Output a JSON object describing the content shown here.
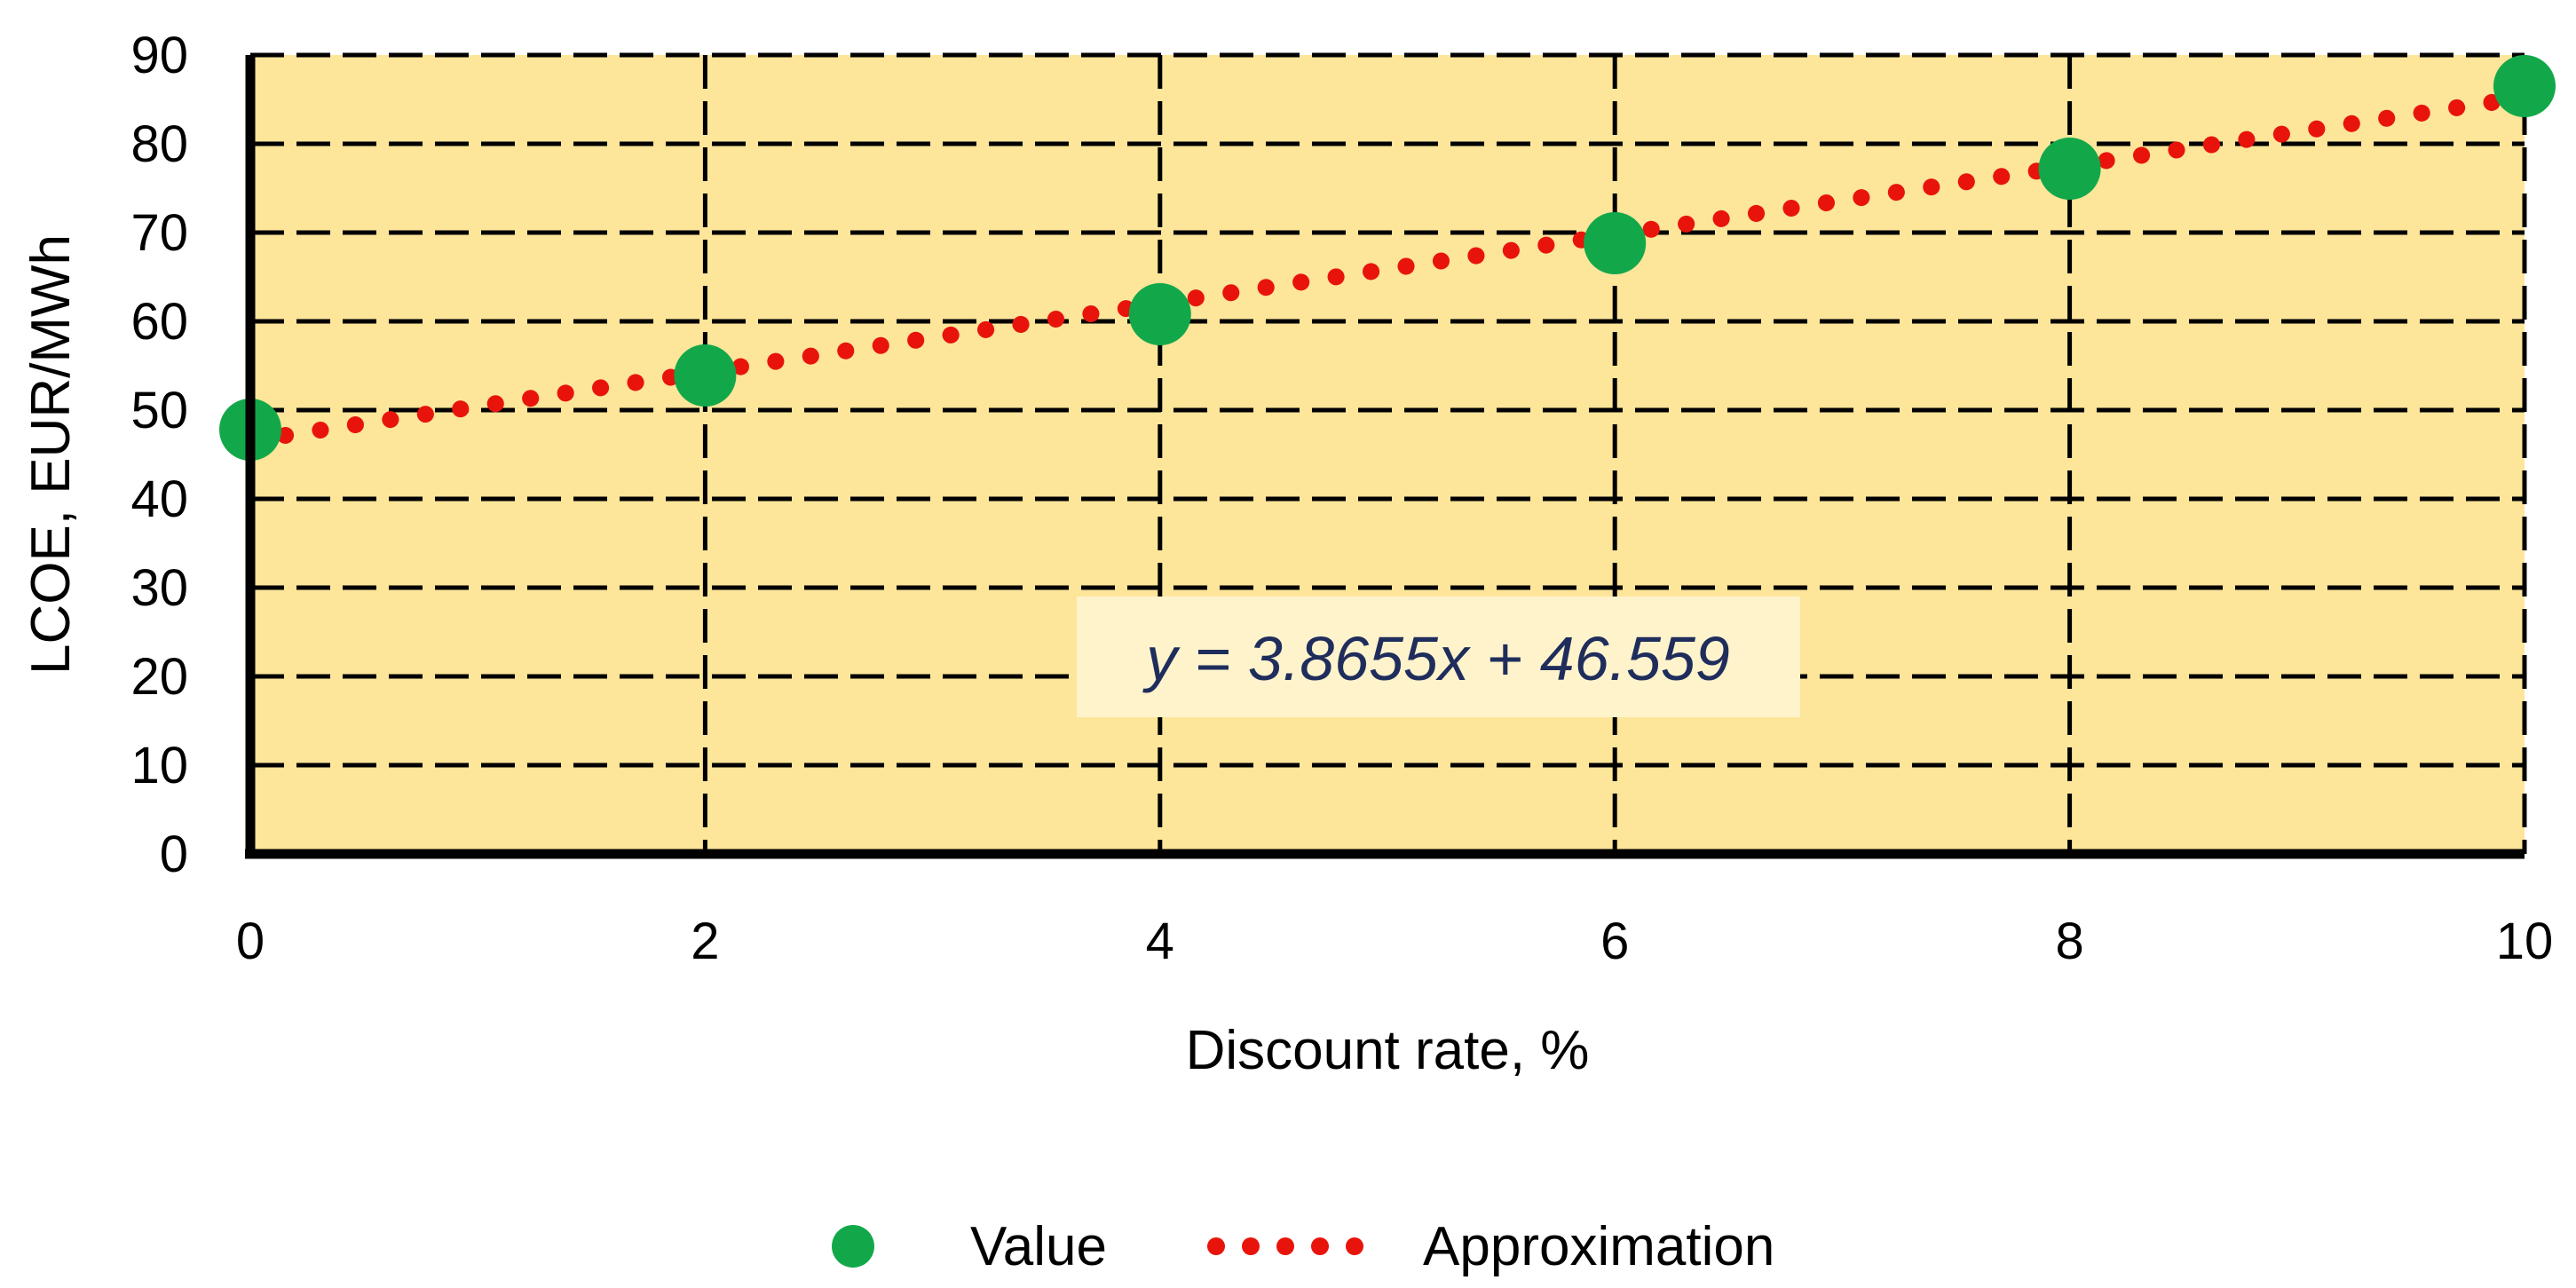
{
  "chart_data": {
    "type": "scatter",
    "title": "",
    "xlabel": "Discount rate, %",
    "ylabel": "LCOE, EUR/MWh",
    "xlim": [
      0,
      10
    ],
    "ylim": [
      0,
      90
    ],
    "x_ticks": [
      0,
      2,
      4,
      6,
      8,
      10
    ],
    "y_ticks": [
      0,
      10,
      20,
      30,
      40,
      50,
      60,
      70,
      80,
      90
    ],
    "grid": true,
    "legend_position": "bottom",
    "plot_background": "#fde59a",
    "series": [
      {
        "name": "Value",
        "kind": "scatter",
        "color": "#12a84a",
        "x": [
          0,
          2,
          4,
          6,
          8,
          10
        ],
        "y": [
          47.8,
          53.9,
          60.8,
          68.8,
          77.2,
          86.5
        ]
      },
      {
        "name": "Approximation",
        "kind": "line",
        "style": "dotted",
        "color": "#e8140c",
        "slope": 3.8655,
        "intercept": 46.559
      }
    ],
    "annotation": {
      "text": "y = 3.8655x + 46.559",
      "background": "#fff3cc",
      "color": "#1f2d5c"
    }
  }
}
